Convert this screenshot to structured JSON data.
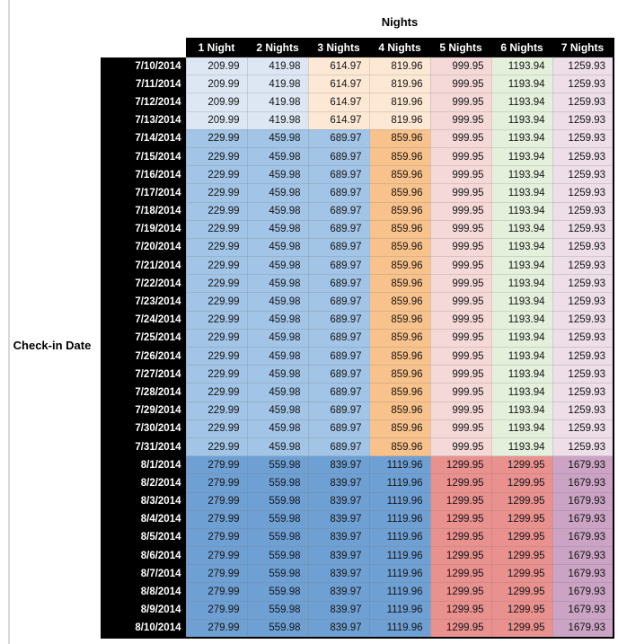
{
  "ui": {
    "title": "Nights",
    "row_axis_label": "Check-in Date"
  },
  "palette": {
    "light_blue": "#DCE7F3",
    "light_orange": "#FCE8D4",
    "light_red": "#F4D9D8",
    "light_green": "#E4F0DC",
    "light_purple": "#EDDEE8",
    "medium_blue": "#A2C4E6",
    "medium_orange": "#F8C28C",
    "strong_blue": "#6FA0D4",
    "strong_red": "#E9918F",
    "medium_purple": "#CBA3C4",
    "header_bg": "#000000",
    "header_text": "#FFFFFF"
  },
  "chart_data": {
    "type": "table",
    "title": "Nights",
    "row_label": "Check-in Date",
    "columns": [
      "1 Night",
      "2 Nights",
      "3 Nights",
      "4 Nights",
      "5 Nights",
      "6 Nights",
      "7 Nights"
    ],
    "rows": [
      {
        "date": "7/10/2014",
        "values": [
          "209.99",
          "419.98",
          "614.97",
          "819.96",
          "999.95",
          "1193.94",
          "1259.93"
        ],
        "colors": [
          "light_blue",
          "light_blue",
          "light_orange",
          "light_orange",
          "light_red",
          "light_green",
          "light_purple"
        ]
      },
      {
        "date": "7/11/2014",
        "values": [
          "209.99",
          "419.98",
          "614.97",
          "819.96",
          "999.95",
          "1193.94",
          "1259.93"
        ],
        "colors": [
          "light_blue",
          "light_blue",
          "light_orange",
          "light_orange",
          "light_red",
          "light_green",
          "light_purple"
        ]
      },
      {
        "date": "7/12/2014",
        "values": [
          "209.99",
          "419.98",
          "614.97",
          "819.96",
          "999.95",
          "1193.94",
          "1259.93"
        ],
        "colors": [
          "light_blue",
          "light_blue",
          "light_orange",
          "light_orange",
          "light_red",
          "light_green",
          "light_purple"
        ]
      },
      {
        "date": "7/13/2014",
        "values": [
          "209.99",
          "419.98",
          "614.97",
          "819.96",
          "999.95",
          "1193.94",
          "1259.93"
        ],
        "colors": [
          "light_blue",
          "light_blue",
          "light_orange",
          "light_orange",
          "light_red",
          "light_green",
          "light_purple"
        ]
      },
      {
        "date": "7/14/2014",
        "values": [
          "229.99",
          "459.98",
          "689.97",
          "859.96",
          "999.95",
          "1193.94",
          "1259.93"
        ],
        "colors": [
          "medium_blue",
          "medium_blue",
          "medium_blue",
          "medium_orange",
          "light_red",
          "light_green",
          "light_purple"
        ]
      },
      {
        "date": "7/15/2014",
        "values": [
          "229.99",
          "459.98",
          "689.97",
          "859.96",
          "999.95",
          "1193.94",
          "1259.93"
        ],
        "colors": [
          "medium_blue",
          "medium_blue",
          "medium_blue",
          "medium_orange",
          "light_red",
          "light_green",
          "light_purple"
        ]
      },
      {
        "date": "7/16/2014",
        "values": [
          "229.99",
          "459.98",
          "689.97",
          "859.96",
          "999.95",
          "1193.94",
          "1259.93"
        ],
        "colors": [
          "medium_blue",
          "medium_blue",
          "medium_blue",
          "medium_orange",
          "light_red",
          "light_green",
          "light_purple"
        ]
      },
      {
        "date": "7/17/2014",
        "values": [
          "229.99",
          "459.98",
          "689.97",
          "859.96",
          "999.95",
          "1193.94",
          "1259.93"
        ],
        "colors": [
          "medium_blue",
          "medium_blue",
          "medium_blue",
          "medium_orange",
          "light_red",
          "light_green",
          "light_purple"
        ]
      },
      {
        "date": "7/18/2014",
        "values": [
          "229.99",
          "459.98",
          "689.97",
          "859.96",
          "999.95",
          "1193.94",
          "1259.93"
        ],
        "colors": [
          "medium_blue",
          "medium_blue",
          "medium_blue",
          "medium_orange",
          "light_red",
          "light_green",
          "light_purple"
        ]
      },
      {
        "date": "7/19/2014",
        "values": [
          "229.99",
          "459.98",
          "689.97",
          "859.96",
          "999.95",
          "1193.94",
          "1259.93"
        ],
        "colors": [
          "medium_blue",
          "medium_blue",
          "medium_blue",
          "medium_orange",
          "light_red",
          "light_green",
          "light_purple"
        ]
      },
      {
        "date": "7/20/2014",
        "values": [
          "229.99",
          "459.98",
          "689.97",
          "859.96",
          "999.95",
          "1193.94",
          "1259.93"
        ],
        "colors": [
          "medium_blue",
          "medium_blue",
          "medium_blue",
          "medium_orange",
          "light_red",
          "light_green",
          "light_purple"
        ]
      },
      {
        "date": "7/21/2014",
        "values": [
          "229.99",
          "459.98",
          "689.97",
          "859.96",
          "999.95",
          "1193.94",
          "1259.93"
        ],
        "colors": [
          "medium_blue",
          "medium_blue",
          "medium_blue",
          "medium_orange",
          "light_red",
          "light_green",
          "light_purple"
        ]
      },
      {
        "date": "7/22/2014",
        "values": [
          "229.99",
          "459.98",
          "689.97",
          "859.96",
          "999.95",
          "1193.94",
          "1259.93"
        ],
        "colors": [
          "medium_blue",
          "medium_blue",
          "medium_blue",
          "medium_orange",
          "light_red",
          "light_green",
          "light_purple"
        ]
      },
      {
        "date": "7/23/2014",
        "values": [
          "229.99",
          "459.98",
          "689.97",
          "859.96",
          "999.95",
          "1193.94",
          "1259.93"
        ],
        "colors": [
          "medium_blue",
          "medium_blue",
          "medium_blue",
          "medium_orange",
          "light_red",
          "light_green",
          "light_purple"
        ]
      },
      {
        "date": "7/24/2014",
        "values": [
          "229.99",
          "459.98",
          "689.97",
          "859.96",
          "999.95",
          "1193.94",
          "1259.93"
        ],
        "colors": [
          "medium_blue",
          "medium_blue",
          "medium_blue",
          "medium_orange",
          "light_red",
          "light_green",
          "light_purple"
        ]
      },
      {
        "date": "7/25/2014",
        "values": [
          "229.99",
          "459.98",
          "689.97",
          "859.96",
          "999.95",
          "1193.94",
          "1259.93"
        ],
        "colors": [
          "medium_blue",
          "medium_blue",
          "medium_blue",
          "medium_orange",
          "light_red",
          "light_green",
          "light_purple"
        ]
      },
      {
        "date": "7/26/2014",
        "values": [
          "229.99",
          "459.98",
          "689.97",
          "859.96",
          "999.95",
          "1193.94",
          "1259.93"
        ],
        "colors": [
          "medium_blue",
          "medium_blue",
          "medium_blue",
          "medium_orange",
          "light_red",
          "light_green",
          "light_purple"
        ]
      },
      {
        "date": "7/27/2014",
        "values": [
          "229.99",
          "459.98",
          "689.97",
          "859.96",
          "999.95",
          "1193.94",
          "1259.93"
        ],
        "colors": [
          "medium_blue",
          "medium_blue",
          "medium_blue",
          "medium_orange",
          "light_red",
          "light_green",
          "light_purple"
        ]
      },
      {
        "date": "7/28/2014",
        "values": [
          "229.99",
          "459.98",
          "689.97",
          "859.96",
          "999.95",
          "1193.94",
          "1259.93"
        ],
        "colors": [
          "medium_blue",
          "medium_blue",
          "medium_blue",
          "medium_orange",
          "light_red",
          "light_green",
          "light_purple"
        ]
      },
      {
        "date": "7/29/2014",
        "values": [
          "229.99",
          "459.98",
          "689.97",
          "859.96",
          "999.95",
          "1193.94",
          "1259.93"
        ],
        "colors": [
          "medium_blue",
          "medium_blue",
          "medium_blue",
          "medium_orange",
          "light_red",
          "light_green",
          "light_purple"
        ]
      },
      {
        "date": "7/30/2014",
        "values": [
          "229.99",
          "459.98",
          "689.97",
          "859.96",
          "999.95",
          "1193.94",
          "1259.93"
        ],
        "colors": [
          "medium_blue",
          "medium_blue",
          "medium_blue",
          "medium_orange",
          "light_red",
          "light_green",
          "light_purple"
        ]
      },
      {
        "date": "7/31/2014",
        "values": [
          "229.99",
          "459.98",
          "689.97",
          "859.96",
          "999.95",
          "1193.94",
          "1259.93"
        ],
        "colors": [
          "medium_blue",
          "medium_blue",
          "medium_blue",
          "medium_orange",
          "light_red",
          "light_green",
          "light_purple"
        ]
      },
      {
        "date": "8/1/2014",
        "values": [
          "279.99",
          "559.98",
          "839.97",
          "1119.96",
          "1299.95",
          "1299.95",
          "1679.93"
        ],
        "colors": [
          "strong_blue",
          "strong_blue",
          "strong_blue",
          "strong_blue",
          "strong_red",
          "strong_red",
          "medium_purple"
        ]
      },
      {
        "date": "8/2/2014",
        "values": [
          "279.99",
          "559.98",
          "839.97",
          "1119.96",
          "1299.95",
          "1299.95",
          "1679.93"
        ],
        "colors": [
          "strong_blue",
          "strong_blue",
          "strong_blue",
          "strong_blue",
          "strong_red",
          "strong_red",
          "medium_purple"
        ]
      },
      {
        "date": "8/3/2014",
        "values": [
          "279.99",
          "559.98",
          "839.97",
          "1119.96",
          "1299.95",
          "1299.95",
          "1679.93"
        ],
        "colors": [
          "strong_blue",
          "strong_blue",
          "strong_blue",
          "strong_blue",
          "strong_red",
          "strong_red",
          "medium_purple"
        ]
      },
      {
        "date": "8/4/2014",
        "values": [
          "279.99",
          "559.98",
          "839.97",
          "1119.96",
          "1299.95",
          "1299.95",
          "1679.93"
        ],
        "colors": [
          "strong_blue",
          "strong_blue",
          "strong_blue",
          "strong_blue",
          "strong_red",
          "strong_red",
          "medium_purple"
        ]
      },
      {
        "date": "8/5/2014",
        "values": [
          "279.99",
          "559.98",
          "839.97",
          "1119.96",
          "1299.95",
          "1299.95",
          "1679.93"
        ],
        "colors": [
          "strong_blue",
          "strong_blue",
          "strong_blue",
          "strong_blue",
          "strong_red",
          "strong_red",
          "medium_purple"
        ]
      },
      {
        "date": "8/6/2014",
        "values": [
          "279.99",
          "559.98",
          "839.97",
          "1119.96",
          "1299.95",
          "1299.95",
          "1679.93"
        ],
        "colors": [
          "strong_blue",
          "strong_blue",
          "strong_blue",
          "strong_blue",
          "strong_red",
          "strong_red",
          "medium_purple"
        ]
      },
      {
        "date": "8/7/2014",
        "values": [
          "279.99",
          "559.98",
          "839.97",
          "1119.96",
          "1299.95",
          "1299.95",
          "1679.93"
        ],
        "colors": [
          "strong_blue",
          "strong_blue",
          "strong_blue",
          "strong_blue",
          "strong_red",
          "strong_red",
          "medium_purple"
        ]
      },
      {
        "date": "8/8/2014",
        "values": [
          "279.99",
          "559.98",
          "839.97",
          "1119.96",
          "1299.95",
          "1299.95",
          "1679.93"
        ],
        "colors": [
          "strong_blue",
          "strong_blue",
          "strong_blue",
          "strong_blue",
          "strong_red",
          "strong_red",
          "medium_purple"
        ]
      },
      {
        "date": "8/9/2014",
        "values": [
          "279.99",
          "559.98",
          "839.97",
          "1119.96",
          "1299.95",
          "1299.95",
          "1679.93"
        ],
        "colors": [
          "strong_blue",
          "strong_blue",
          "strong_blue",
          "strong_blue",
          "strong_red",
          "strong_red",
          "medium_purple"
        ]
      },
      {
        "date": "8/10/2014",
        "values": [
          "279.99",
          "559.98",
          "839.97",
          "1119.96",
          "1299.95",
          "1299.95",
          "1679.93"
        ],
        "colors": [
          "strong_blue",
          "strong_blue",
          "strong_blue",
          "strong_blue",
          "strong_red",
          "strong_red",
          "medium_purple"
        ]
      }
    ]
  }
}
